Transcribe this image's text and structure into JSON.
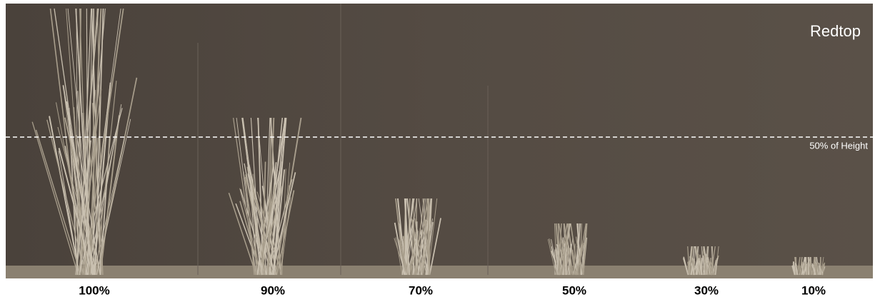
{
  "photo": {
    "title": "Redtop",
    "reference_line_label": "50% of Height",
    "labels": [
      "100%",
      "90%",
      "70%",
      "50%",
      "30%",
      "10%"
    ]
  }
}
